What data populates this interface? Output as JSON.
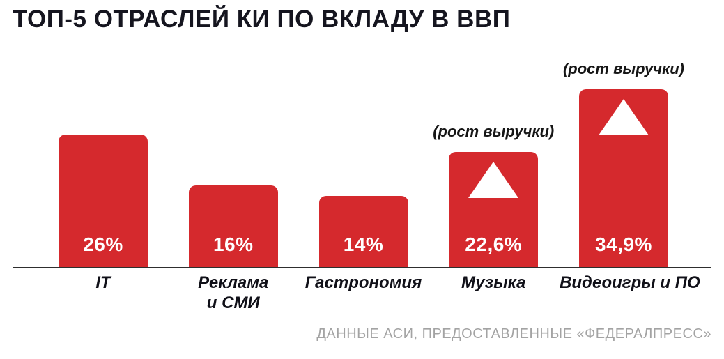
{
  "header": {
    "title": "ТОП-5 ОТРАСЛЕЙ КИ ПО ВКЛАДУ В ВВП"
  },
  "footer": {
    "source": "ДАННЫЕ АСИ, ПРЕДОСТАВЛЕННЫЕ «ФЕДЕРАЛПРЕСС»"
  },
  "colors": {
    "bar": "#d5292d",
    "title": "#15151f",
    "source": "#a3a3a3",
    "baseline": "#2e2e2e",
    "triangle": "#ffffff"
  },
  "chart_data": {
    "type": "bar",
    "title": "ТОП-5 ОТРАСЛЕЙ КИ ПО ВКЛАДУ В ВВП",
    "categories": [
      "IT",
      "Реклама\nи СМИ",
      "Гастрономия",
      "Музыка",
      "Видеоигры и ПО"
    ],
    "values": [
      26,
      16,
      14,
      22.6,
      34.9
    ],
    "value_labels": [
      "26%",
      "16%",
      "14%",
      "22,6%",
      "34,9%"
    ],
    "annotations": [
      "",
      "",
      "",
      "(рост выручки)",
      "(рост выручки)"
    ],
    "growth_markers": [
      false,
      false,
      false,
      true,
      true
    ],
    "xlabel": "",
    "ylabel": "",
    "ylim": [
      0,
      36
    ],
    "grid": false,
    "legend": false,
    "source": "ДАННЫЕ АСИ, ПРЕДОСТАВЛЕННЫЕ «ФЕДЕРАЛПРЕСС»"
  }
}
